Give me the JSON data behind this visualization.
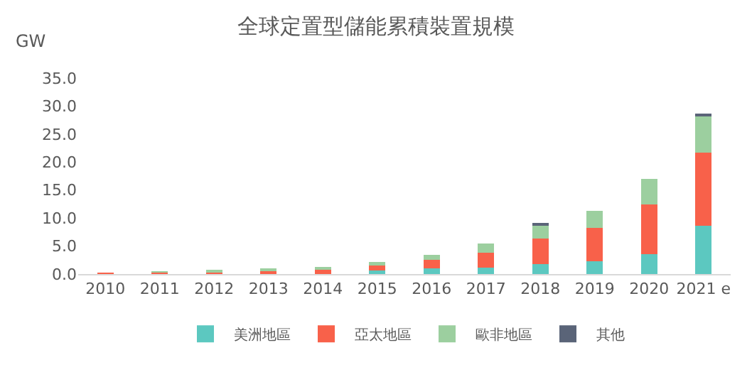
{
  "chart_data": {
    "type": "bar",
    "title": "全球定置型儲能累積裝置規模",
    "ylabel": "GW",
    "stacked": true,
    "categories": [
      "2010",
      "2011",
      "2012",
      "2013",
      "2014",
      "2015",
      "2016",
      "2017",
      "2018",
      "2019",
      "2020",
      "2021 e"
    ],
    "series": [
      {
        "name": "美洲地區",
        "color": "#5cc8c0",
        "values": [
          null,
          null,
          null,
          null,
          null,
          0.6,
          1.0,
          1.1,
          1.8,
          2.3,
          3.6,
          8.6
        ]
      },
      {
        "name": "亞太地區",
        "color": "#f8614a",
        "values": [
          0.2,
          0.3,
          0.5,
          0.7,
          0.9,
          0.9,
          1.5,
          2.7,
          4.5,
          5.9,
          8.8,
          13.1
        ]
      },
      {
        "name": "歐非地區",
        "color": "#9ccf9f",
        "values": [
          null,
          0.1,
          0.1,
          0.2,
          0.3,
          0.7,
          0.9,
          1.7,
          2.4,
          3.1,
          4.6,
          6.7
        ]
      },
      {
        "name": "其他",
        "color": "#5a6478",
        "values": [
          null,
          null,
          null,
          null,
          null,
          null,
          null,
          null,
          0.2,
          null,
          null,
          0.3
        ]
      }
    ],
    "ylim": [
      0,
      35
    ],
    "yticks": [
      {
        "value": 0,
        "label": "0.0"
      },
      {
        "value": 5,
        "label": "5.0"
      },
      {
        "value": 10,
        "label": "10.0"
      },
      {
        "value": 15,
        "label": "15.0"
      },
      {
        "value": 20,
        "label": "20.0"
      },
      {
        "value": 25,
        "label": "25.0"
      },
      {
        "value": 30,
        "label": "30.0"
      },
      {
        "value": 35,
        "label": "35.0"
      }
    ],
    "grid": false,
    "legend": "bottom"
  }
}
